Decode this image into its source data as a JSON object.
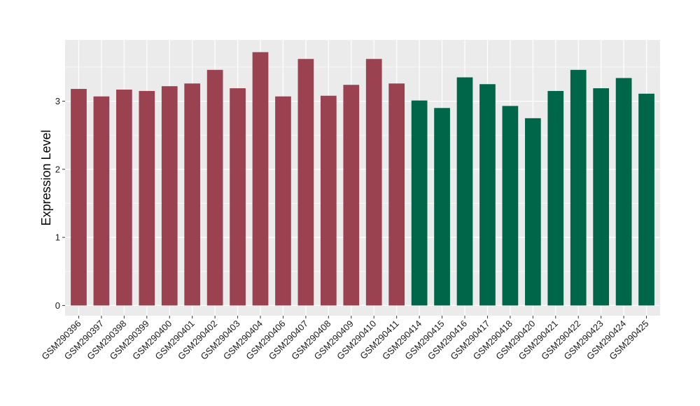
{
  "chart_data": {
    "type": "bar",
    "ylabel": "Expression Level",
    "xlabel": "",
    "title": "",
    "ylim": [
      -0.15,
      3.9
    ],
    "yticks": [
      0,
      1,
      2,
      3
    ],
    "grid": true,
    "legend": "none",
    "colors": {
      "group1": "#9A4250",
      "group2": "#00664A",
      "panel": "#EBEBEB",
      "gridline": "#FFFFFF"
    },
    "categories": [
      "GSM290396",
      "GSM290397",
      "GSM290398",
      "GSM290399",
      "GSM290400",
      "GSM290401",
      "GSM290402",
      "GSM290403",
      "GSM290404",
      "GSM290406",
      "GSM290407",
      "GSM290408",
      "GSM290409",
      "GSM290410",
      "GSM290411",
      "GSM290414",
      "GSM290415",
      "GSM290416",
      "GSM290417",
      "GSM290418",
      "GSM290420",
      "GSM290421",
      "GSM290422",
      "GSM290423",
      "GSM290424",
      "GSM290425"
    ],
    "values": [
      3.18,
      3.07,
      3.17,
      3.15,
      3.22,
      3.26,
      3.46,
      3.19,
      3.72,
      3.07,
      3.62,
      3.08,
      3.24,
      3.62,
      3.26,
      3.01,
      2.9,
      3.35,
      3.25,
      2.93,
      2.75,
      3.15,
      3.46,
      3.19,
      3.34,
      3.11
    ],
    "groups": [
      "group1",
      "group1",
      "group1",
      "group1",
      "group1",
      "group1",
      "group1",
      "group1",
      "group1",
      "group1",
      "group1",
      "group1",
      "group1",
      "group1",
      "group1",
      "group2",
      "group2",
      "group2",
      "group2",
      "group2",
      "group2",
      "group2",
      "group2",
      "group2",
      "group2",
      "group2"
    ]
  }
}
